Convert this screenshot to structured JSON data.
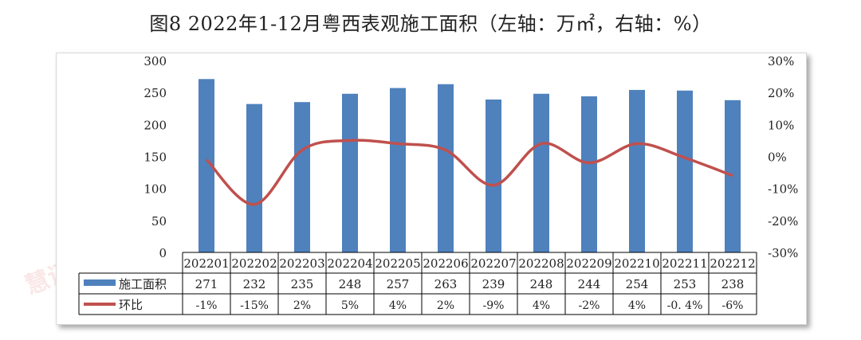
{
  "title": "图8 2022年1-12月粤西表观施工面积（左轴：万㎡，右轴：%）",
  "watermark": "ICC慧讯网",
  "colors": {
    "bar": "#4f81bd",
    "line": "#c0504d",
    "grid": "#000000"
  },
  "chart_data": {
    "type": "bar+line",
    "categories": [
      "202201",
      "202202",
      "202203",
      "202204",
      "202205",
      "202206",
      "202207",
      "202208",
      "202209",
      "202210",
      "202211",
      "202212"
    ],
    "series": [
      {
        "name": "施工面积",
        "type": "bar",
        "axis": "left",
        "values": [
          271,
          232,
          235,
          248,
          257,
          263,
          239,
          248,
          244,
          254,
          253,
          238
        ],
        "labels": [
          "271",
          "232",
          "235",
          "248",
          "257",
          "263",
          "239",
          "248",
          "244",
          "254",
          "253",
          "238"
        ]
      },
      {
        "name": "环比",
        "type": "line",
        "axis": "right",
        "values": [
          -1,
          -15,
          2,
          5,
          4,
          2,
          -9,
          4,
          -2,
          4,
          -0.4,
          -6
        ],
        "labels": [
          "-1%",
          "-15%",
          "2%",
          "5%",
          "4%",
          "2%",
          "-9%",
          "4%",
          "-2%",
          "4%",
          "-0. 4%",
          "-6%"
        ]
      }
    ],
    "left_axis": {
      "ylim": [
        0,
        300
      ],
      "ticks": [
        0,
        50,
        100,
        150,
        200,
        250,
        300
      ],
      "tick_labels": [
        "0",
        "50",
        "100",
        "150",
        "200",
        "250",
        "300"
      ]
    },
    "right_axis": {
      "ylim": [
        -30,
        30
      ],
      "ticks": [
        -30,
        -20,
        -10,
        0,
        10,
        20,
        30
      ],
      "tick_labels": [
        "-30%",
        "-20%",
        "-10%",
        "0%",
        "10%",
        "20%",
        "30%"
      ]
    },
    "legend": "data-table",
    "grid": false
  }
}
